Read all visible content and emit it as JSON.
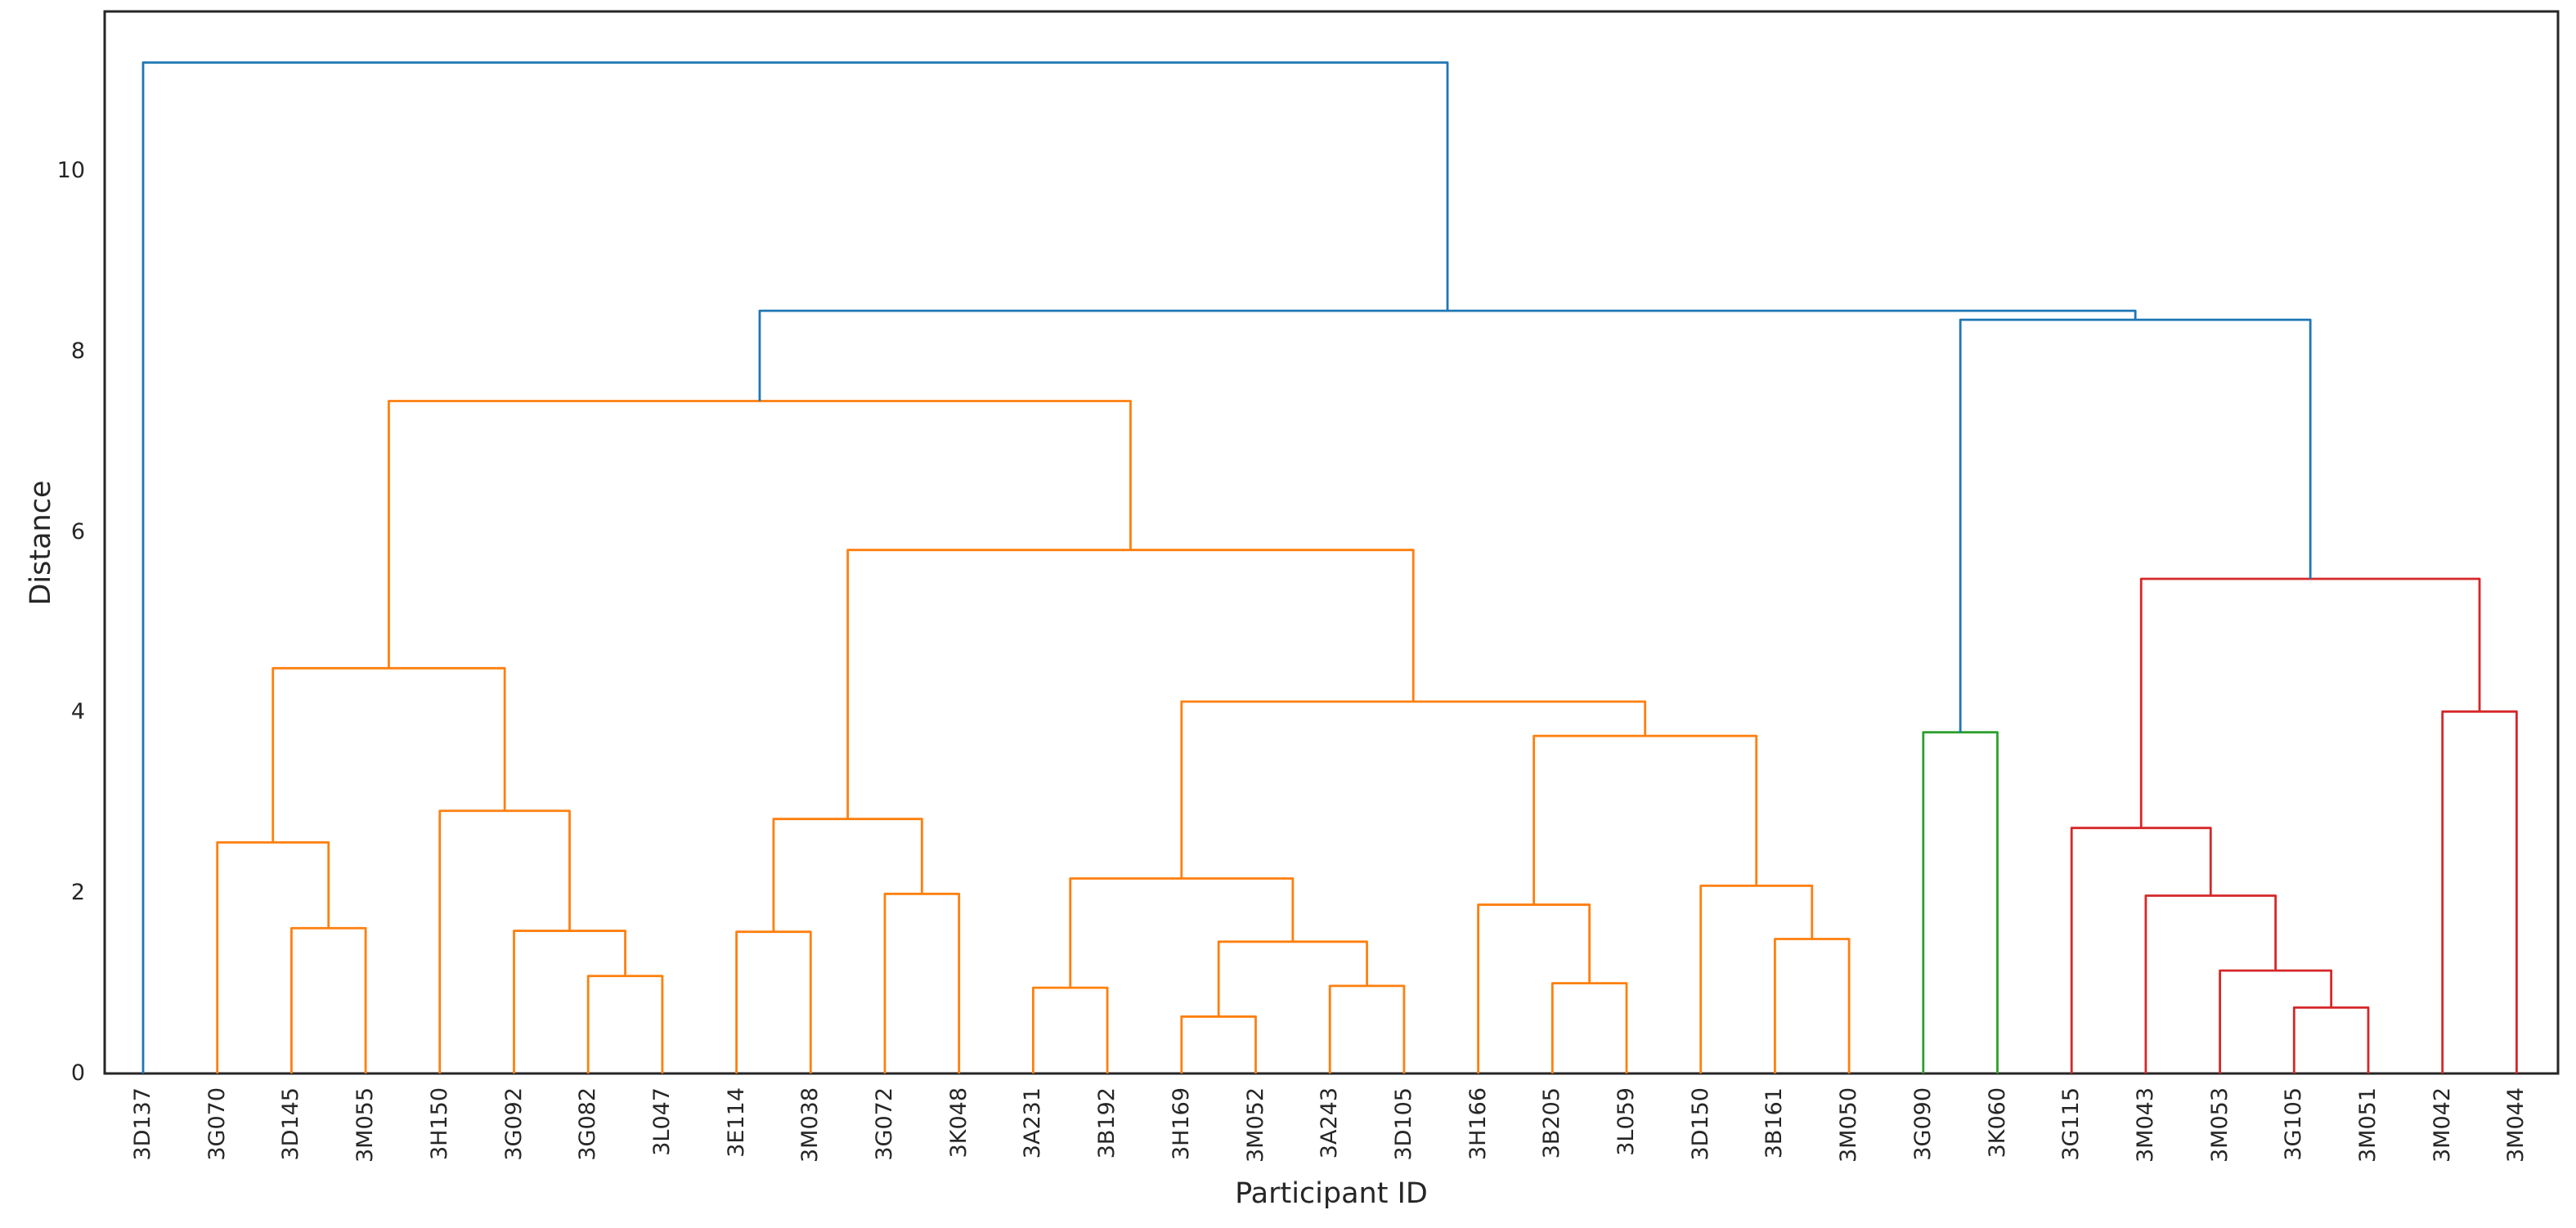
{
  "chart_data": {
    "type": "dendrogram",
    "title": "",
    "xlabel": "Participant ID",
    "ylabel": "Distance",
    "ylim": [
      0,
      11.77
    ],
    "yticks": [
      0,
      2,
      4,
      6,
      8,
      10
    ],
    "grid": false,
    "legend": null,
    "leaves": [
      "3D137",
      "3G070",
      "3D145",
      "3M055",
      "3H150",
      "3G092",
      "3G082",
      "3L047",
      "3E114",
      "3M038",
      "3G072",
      "3K048",
      "3A231",
      "3B192",
      "3H169",
      "3M052",
      "3A243",
      "3D105",
      "3H166",
      "3B205",
      "3L059",
      "3D150",
      "3B161",
      "3M050",
      "3G090",
      "3K060",
      "3G115",
      "3M043",
      "3M053",
      "3G105",
      "3M051",
      "3M042",
      "3M044"
    ],
    "colors": {
      "blue": "#1f77b4",
      "orange": "#ff7f0e",
      "green": "#2ca02c",
      "red": "#d62728",
      "axis": "#262626",
      "text": "#262626",
      "background": "#ffffff"
    },
    "links": [
      {
        "id": "o1",
        "a": 2,
        "b": 3,
        "h": 1.61,
        "c": "orange"
      },
      {
        "id": "o2",
        "a": 1,
        "b": "o1",
        "h": 2.56,
        "c": "orange"
      },
      {
        "id": "o3",
        "a": 6,
        "b": 7,
        "h": 1.08,
        "c": "orange"
      },
      {
        "id": "o4",
        "a": 5,
        "b": "o3",
        "h": 1.58,
        "c": "orange"
      },
      {
        "id": "o5",
        "a": 4,
        "b": "o4",
        "h": 2.91,
        "c": "orange"
      },
      {
        "id": "o6",
        "a": "o2",
        "b": "o5",
        "h": 4.49,
        "c": "orange"
      },
      {
        "id": "o7",
        "a": 8,
        "b": 9,
        "h": 1.57,
        "c": "orange"
      },
      {
        "id": "o8",
        "a": 10,
        "b": 11,
        "h": 1.99,
        "c": "orange"
      },
      {
        "id": "o9",
        "a": "o7",
        "b": "o8",
        "h": 2.82,
        "c": "orange"
      },
      {
        "id": "o10",
        "a": 12,
        "b": 13,
        "h": 0.95,
        "c": "orange"
      },
      {
        "id": "o11",
        "a": 14,
        "b": 15,
        "h": 0.63,
        "c": "orange"
      },
      {
        "id": "o12",
        "a": 16,
        "b": 17,
        "h": 0.97,
        "c": "orange"
      },
      {
        "id": "o13",
        "a": "o11",
        "b": "o12",
        "h": 1.46,
        "c": "orange"
      },
      {
        "id": "o14",
        "a": "o10",
        "b": "o13",
        "h": 2.16,
        "c": "orange"
      },
      {
        "id": "o15",
        "a": 19,
        "b": 20,
        "h": 1.0,
        "c": "orange"
      },
      {
        "id": "o16",
        "a": 18,
        "b": "o15",
        "h": 1.87,
        "c": "orange"
      },
      {
        "id": "o17",
        "a": 22,
        "b": 23,
        "h": 1.49,
        "c": "orange"
      },
      {
        "id": "o18",
        "a": 21,
        "b": "o17",
        "h": 2.08,
        "c": "orange"
      },
      {
        "id": "o19",
        "a": "o16",
        "b": "o18",
        "h": 3.74,
        "c": "orange"
      },
      {
        "id": "o20",
        "a": "o14",
        "b": "o19",
        "h": 4.12,
        "c": "orange"
      },
      {
        "id": "o21",
        "a": "o9",
        "b": "o20",
        "h": 5.8,
        "c": "orange"
      },
      {
        "id": "o22",
        "a": "o6",
        "b": "o21",
        "h": 7.45,
        "c": "orange"
      },
      {
        "id": "g1",
        "a": 24,
        "b": 25,
        "h": 3.78,
        "c": "green"
      },
      {
        "id": "r1",
        "a": 29,
        "b": 30,
        "h": 0.73,
        "c": "red"
      },
      {
        "id": "r2",
        "a": 28,
        "b": "r1",
        "h": 1.14,
        "c": "red"
      },
      {
        "id": "r3",
        "a": 27,
        "b": "r2",
        "h": 1.97,
        "c": "red"
      },
      {
        "id": "r4",
        "a": 26,
        "b": "r3",
        "h": 2.72,
        "c": "red"
      },
      {
        "id": "r5",
        "a": 31,
        "b": 32,
        "h": 4.01,
        "c": "red"
      },
      {
        "id": "r6",
        "a": "r4",
        "b": "r5",
        "h": 5.48,
        "c": "red"
      },
      {
        "id": "b1",
        "a": "g1",
        "b": "r6",
        "h": 8.35,
        "c": "blue"
      },
      {
        "id": "b2",
        "a": "o22",
        "b": "b1",
        "h": 8.45,
        "c": "blue"
      },
      {
        "id": "b3",
        "a": 0,
        "b": "b2",
        "h": 11.2,
        "c": "blue"
      }
    ]
  }
}
